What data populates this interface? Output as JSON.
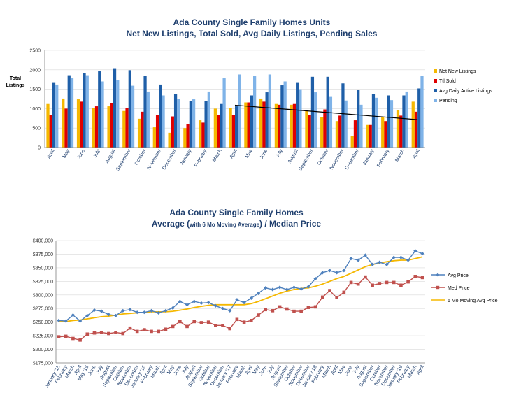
{
  "chart_data": [
    {
      "type": "bar",
      "title": "Ada County Single Family Homes Units",
      "subtitle": "Net New Listings, Total Sold, Avg Daily Listings, Pending Sales",
      "ylabel_line1": "Total",
      "ylabel_line2": "Listings",
      "ylim": [
        0,
        2500
      ],
      "yticks": [
        "0",
        "500",
        "1000",
        "1500",
        "2000",
        "2500"
      ],
      "grid": true,
      "legend_position": "right",
      "trendline": true,
      "categories": [
        "April",
        "May",
        "June",
        "July",
        "August",
        "September",
        "October",
        "November",
        "December",
        "January",
        "February",
        "March",
        "April",
        "May",
        "June",
        "July",
        "August",
        "September",
        "October",
        "November",
        "December",
        "January",
        "February",
        "March",
        "April"
      ],
      "series": [
        {
          "name": "Net New Listings",
          "color": "#f5b800",
          "values": [
            1120,
            1260,
            1240,
            1020,
            1060,
            940,
            740,
            520,
            380,
            500,
            700,
            1000,
            1020,
            1160,
            1260,
            1120,
            1100,
            940,
            780,
            680,
            300,
            580,
            780,
            960,
            1180
          ]
        },
        {
          "name": "Ttl Sold",
          "color": "#e00000",
          "values": [
            840,
            1000,
            1180,
            1060,
            1140,
            1020,
            920,
            840,
            800,
            600,
            640,
            840,
            840,
            1160,
            1180,
            1100,
            1120,
            840,
            980,
            820,
            700,
            580,
            680,
            820,
            920
          ]
        },
        {
          "name": "Avg Daily Active Listings",
          "color": "#1f5fa8",
          "values": [
            1680,
            1860,
            1920,
            1960,
            2040,
            1990,
            1840,
            1620,
            1380,
            1200,
            1200,
            1120,
            1060,
            1340,
            1420,
            1600,
            1680,
            1820,
            1820,
            1650,
            1480,
            1380,
            1340,
            1340,
            1520
          ]
        },
        {
          "name": "Pending",
          "color": "#7fb3e8",
          "values": [
            1620,
            1780,
            1860,
            1700,
            1740,
            1590,
            1440,
            1340,
            1250,
            1240,
            1440,
            1780,
            1880,
            1840,
            1880,
            1700,
            1500,
            1420,
            1320,
            1210,
            1100,
            1280,
            1220,
            1440,
            1840
          ]
        }
      ]
    },
    {
      "type": "line",
      "title": "Ada County Single Family Homes",
      "subtitle_part1": "Average (",
      "subtitle_part2": "with 6 Mo Moving Average",
      "subtitle_part3": ") / Median Price",
      "ylim": [
        175000,
        400000
      ],
      "yticks": [
        "$175,000",
        "$200,000",
        "$225,000",
        "$250,000",
        "$275,000",
        "$300,000",
        "$325,000",
        "$350,000",
        "$375,000",
        "$400,000"
      ],
      "grid": true,
      "legend_position": "right",
      "x": [
        "January '15",
        "February",
        "March",
        "April",
        "May '15",
        "June",
        "July",
        "August",
        "September",
        "October",
        "November",
        "December",
        "January '16",
        "February",
        "March",
        "April",
        "May",
        "June",
        "July",
        "August",
        "September",
        "October",
        "November",
        "December",
        "January '17",
        "February",
        "March",
        "April",
        "May",
        "June",
        "July",
        "August",
        "September",
        "October",
        "November",
        "December",
        "January 18",
        "February",
        "March",
        "April",
        "May",
        "June",
        "July",
        "August",
        "September",
        "October",
        "November",
        "December",
        "January '19",
        "February",
        "March",
        "April"
      ],
      "series": [
        {
          "name": "Avg Price",
          "color": "#4f81bd",
          "marker": "diamond",
          "values": [
            253000,
            252000,
            263000,
            252000,
            262000,
            272000,
            270000,
            264000,
            262000,
            271000,
            273000,
            268000,
            268000,
            271000,
            267000,
            271000,
            276000,
            288000,
            282000,
            288000,
            285000,
            286000,
            280000,
            275000,
            271000,
            291000,
            286000,
            294000,
            303000,
            313000,
            310000,
            314000,
            310000,
            314000,
            311000,
            315000,
            330000,
            341000,
            345000,
            341000,
            345000,
            367000,
            364000,
            373000,
            356000,
            360000,
            356000,
            369000,
            369000,
            364000,
            381000,
            376000
          ]
        },
        {
          "name": "Med Price",
          "color": "#c0504d",
          "marker": "square",
          "values": [
            223000,
            224000,
            220000,
            217000,
            228000,
            230000,
            231000,
            229000,
            231000,
            229000,
            239000,
            233000,
            236000,
            233000,
            233000,
            237000,
            242000,
            251000,
            242000,
            251000,
            249000,
            250000,
            244000,
            244000,
            238000,
            255000,
            250000,
            253000,
            263000,
            273000,
            271000,
            278000,
            274000,
            270000,
            270000,
            277000,
            278000,
            296000,
            308000,
            295000,
            305000,
            323000,
            320000,
            333000,
            318000,
            321000,
            323000,
            323000,
            318000,
            324000,
            334000,
            332000
          ]
        },
        {
          "name": "6 Mo Moving Avg Price",
          "color": "#f5b800",
          "marker": "none",
          "values": [
            251000,
            251000,
            253000,
            254000,
            256000,
            258000,
            260000,
            261000,
            263000,
            265000,
            266000,
            267000,
            268000,
            269000,
            269000,
            269000,
            270000,
            272000,
            274000,
            277000,
            279000,
            281000,
            282000,
            282000,
            282000,
            282000,
            282000,
            284000,
            288000,
            293000,
            298000,
            303000,
            307000,
            310000,
            312000,
            313000,
            316000,
            320000,
            325000,
            330000,
            334000,
            340000,
            346000,
            352000,
            356000,
            359000,
            361000,
            363000,
            364000,
            364000,
            367000,
            370000
          ]
        }
      ]
    }
  ]
}
